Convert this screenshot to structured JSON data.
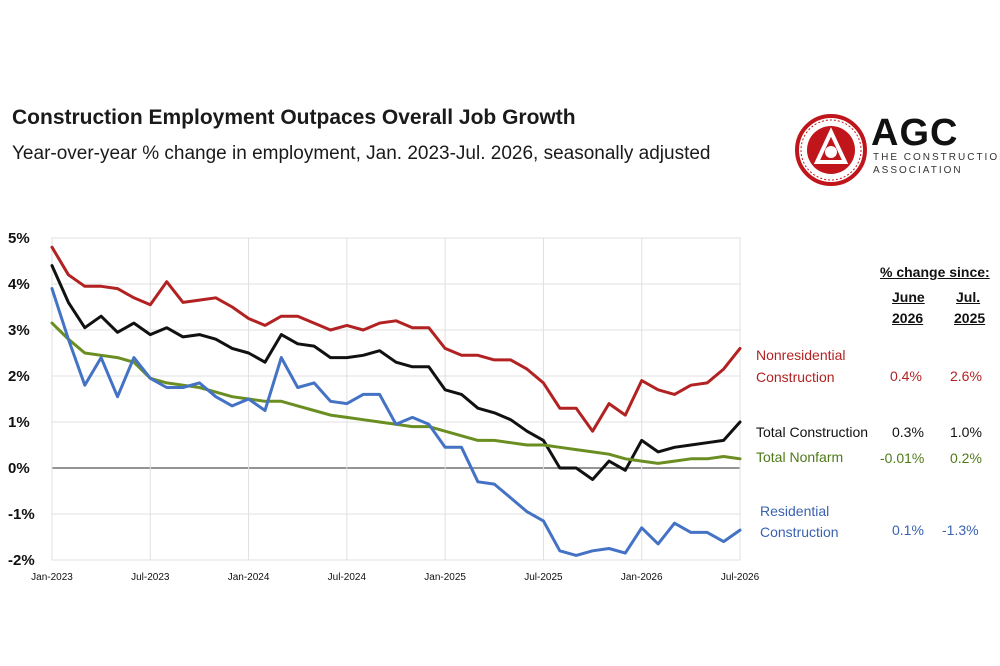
{
  "chart_data": {
    "type": "line",
    "title": "Construction Employment Outpaces Overall Job Growth",
    "subtitle": "Year-over-year % change in employment, Jan. 2023-Jul. 2026, seasonally adjusted",
    "ylim": [
      -2,
      5
    ],
    "y_ticks": [
      "5%",
      "4%",
      "3%",
      "2%",
      "1%",
      "0%",
      "-1%",
      "-2%"
    ],
    "x_ticks": [
      "Jan-2023",
      "Jul-2023",
      "Jan-2024",
      "Jul-2024",
      "Jan-2025",
      "Jul-2025",
      "Jan-2026",
      "Jul-2026"
    ],
    "x_tick_index": [
      0,
      6,
      12,
      18,
      24,
      30,
      36,
      42
    ],
    "grid": true,
    "series": [
      {
        "name": "Nonresidential Construction",
        "color": "#b22222",
        "values": [
          4.8,
          4.2,
          3.95,
          3.95,
          3.9,
          3.7,
          3.55,
          4.05,
          3.6,
          3.65,
          3.7,
          3.5,
          3.25,
          3.1,
          3.3,
          3.3,
          3.15,
          3.0,
          3.1,
          3.0,
          3.15,
          3.2,
          3.05,
          3.05,
          2.6,
          2.45,
          2.45,
          2.35,
          2.35,
          2.15,
          1.85,
          1.3,
          1.3,
          0.8,
          1.4,
          1.15,
          1.9,
          1.7,
          1.6,
          1.8,
          1.85,
          2.15,
          2.6
        ]
      },
      {
        "name": "Total Construction",
        "color": "#111111",
        "values": [
          4.4,
          3.6,
          3.05,
          3.3,
          2.95,
          3.15,
          2.9,
          3.05,
          2.85,
          2.9,
          2.8,
          2.6,
          2.5,
          2.3,
          2.9,
          2.7,
          2.65,
          2.4,
          2.4,
          2.45,
          2.55,
          2.3,
          2.2,
          2.2,
          1.7,
          1.6,
          1.3,
          1.2,
          1.05,
          0.8,
          0.6,
          0.0,
          0.0,
          -0.25,
          0.15,
          -0.05,
          0.6,
          0.35,
          0.45,
          0.5,
          0.55,
          0.6,
          1.0
        ]
      },
      {
        "name": "Total Nonfarm",
        "color": "#6b8e23",
        "values": [
          3.15,
          2.8,
          2.5,
          2.45,
          2.4,
          2.3,
          1.95,
          1.85,
          1.8,
          1.75,
          1.65,
          1.55,
          1.5,
          1.45,
          1.45,
          1.35,
          1.25,
          1.15,
          1.1,
          1.05,
          1.0,
          0.95,
          0.9,
          0.9,
          0.8,
          0.7,
          0.6,
          0.6,
          0.55,
          0.5,
          0.5,
          0.45,
          0.4,
          0.35,
          0.3,
          0.2,
          0.15,
          0.1,
          0.15,
          0.2,
          0.2,
          0.25,
          0.2
        ]
      },
      {
        "name": "Residential Construction",
        "color": "#4472c4",
        "values": [
          3.9,
          2.8,
          1.8,
          2.4,
          1.55,
          2.4,
          1.95,
          1.75,
          1.75,
          1.85,
          1.55,
          1.35,
          1.5,
          1.25,
          2.4,
          1.75,
          1.85,
          1.45,
          1.4,
          1.6,
          1.6,
          0.95,
          1.1,
          0.95,
          0.45,
          0.45,
          -0.3,
          -0.35,
          -0.65,
          -0.95,
          -1.15,
          -1.8,
          -1.9,
          -1.8,
          -1.75,
          -1.85,
          -1.3,
          -1.65,
          -1.2,
          -1.4,
          -1.4,
          -1.6,
          -1.35
        ]
      }
    ],
    "table": {
      "header": "% change since:",
      "columns": [
        "June\n2026",
        "Jul.\n2025"
      ],
      "col_line1": [
        "June",
        "Jul."
      ],
      "col_line2": [
        "2026",
        "2025"
      ],
      "rows": [
        {
          "label_line1": "Nonresidential",
          "label_line2": "Construction",
          "v1": "0.4%",
          "v2": "2.6%",
          "color": "#b22222"
        },
        {
          "label_line1": "Total Construction",
          "label_line2": "",
          "v1": "0.3%",
          "v2": "1.0%",
          "color": "#111111"
        },
        {
          "label_line1": "Total Nonfarm",
          "label_line2": "",
          "v1": "-0.01%",
          "v2": "0.2%",
          "color": "#4f7a1a"
        },
        {
          "label_line1": "Residential",
          "label_line2": "Construction",
          "v1": "0.1%",
          "v2": "-1.3%",
          "color": "#3a62b0"
        }
      ]
    }
  },
  "logo": {
    "brand": "AGC",
    "tagline_1": "THE CONSTRUCTION",
    "tagline_2": "ASSOCIATION"
  }
}
